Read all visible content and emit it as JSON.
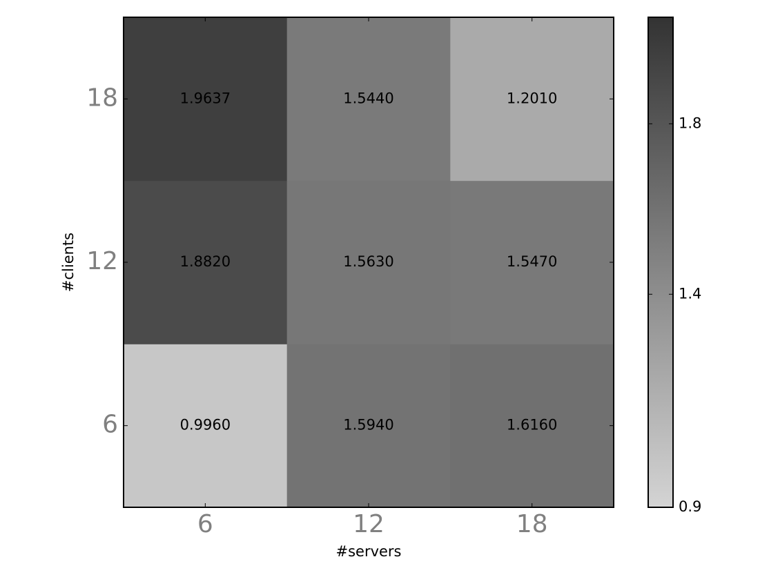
{
  "chart_data": {
    "type": "heatmap",
    "x_label": "#servers",
    "y_label": "#clients",
    "x_categories": [
      "6",
      "12",
      "18"
    ],
    "y_categories": [
      "6",
      "12",
      "18"
    ],
    "values": [
      [
        0.996,
        1.594,
        1.616
      ],
      [
        1.882,
        1.563,
        1.547
      ],
      [
        1.9637,
        1.544,
        1.201
      ]
    ],
    "value_labels": [
      [
        "0.9960",
        "1.5940",
        "1.6160"
      ],
      [
        "1.8820",
        "1.5630",
        "1.5470"
      ],
      [
        "1.9637",
        "1.5440",
        "1.2010"
      ]
    ],
    "colormap": [
      "#d4d4d4",
      "#333333"
    ],
    "clim": [
      0.9,
      2.05
    ],
    "cticks": [
      0.9,
      1.4,
      1.8
    ]
  }
}
